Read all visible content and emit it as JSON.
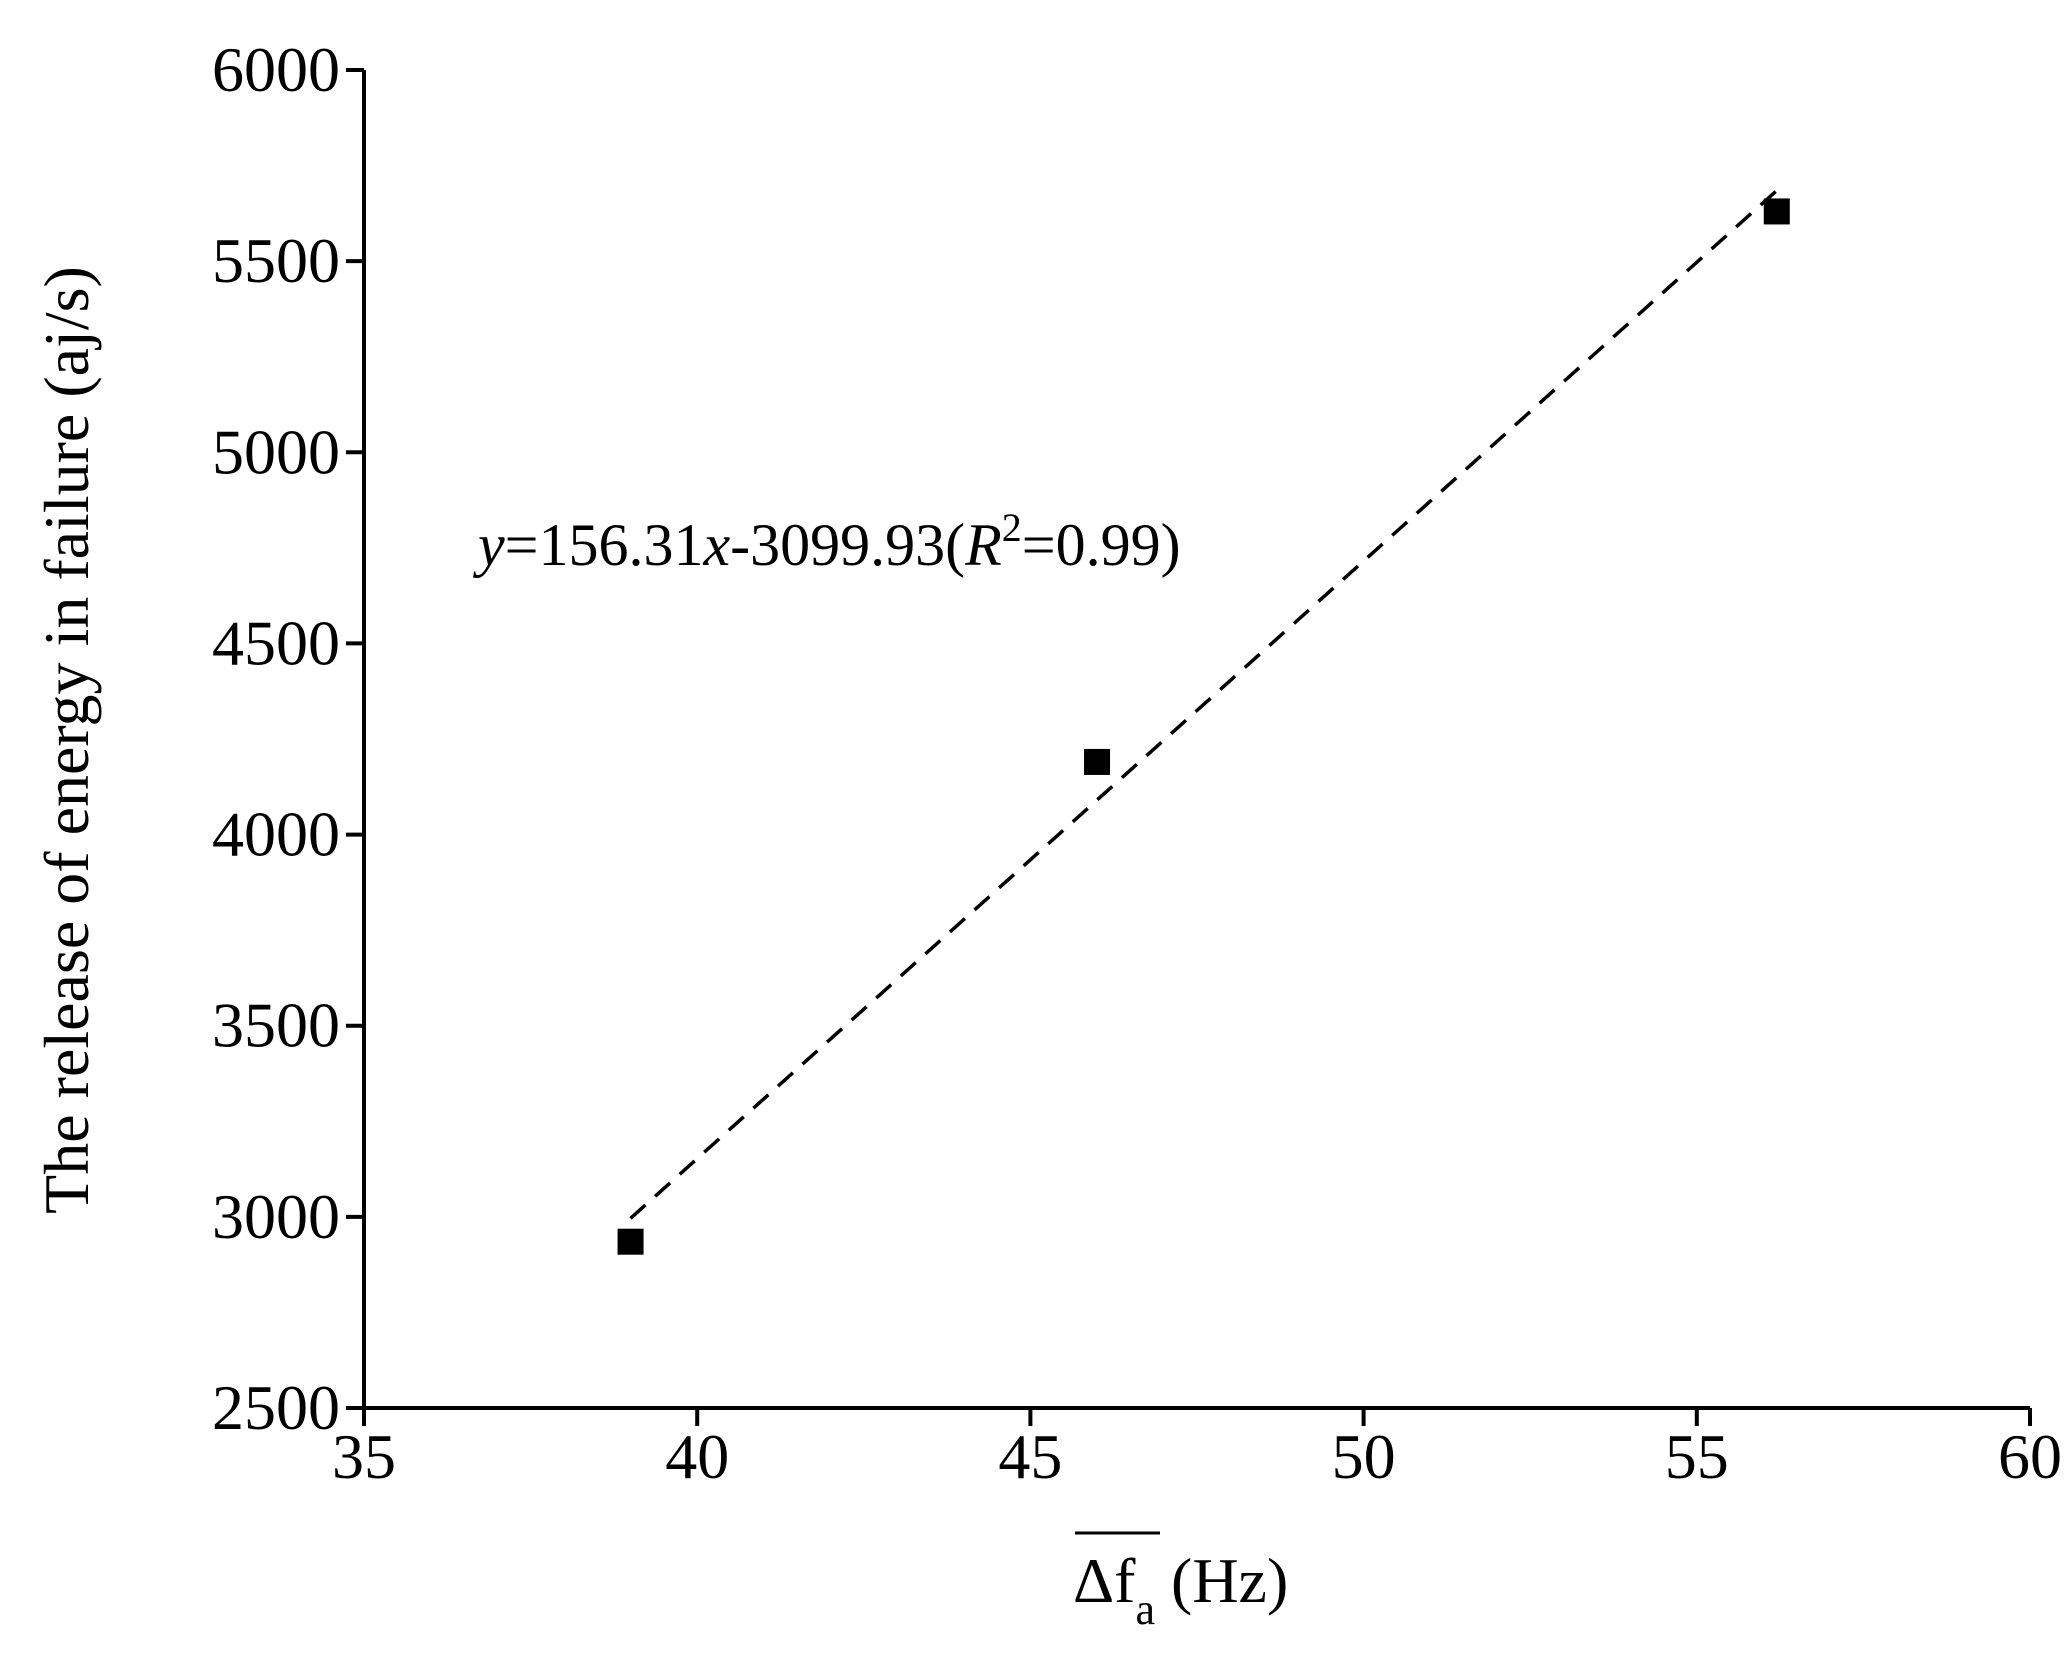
{
  "chart_data": {
    "type": "scatter",
    "title": "",
    "xlabel": {
      "base": "Δf",
      "subscript": "a",
      "overline": true,
      "unit": " (Hz)"
    },
    "ylabel": "The release of energy in failure (aj/s)",
    "xlim": [
      35,
      60
    ],
    "ylim": [
      2500,
      6000
    ],
    "xticks": [
      "35",
      "40",
      "45",
      "50",
      "55",
      "60"
    ],
    "yticks": [
      "2500",
      "3000",
      "3500",
      "4000",
      "4500",
      "5000",
      "5500",
      "6000"
    ],
    "grid": false,
    "legend": "none",
    "series": [
      {
        "marker": "square",
        "color": "#000000",
        "points": [
          {
            "x": 39.0,
            "y": 2935
          },
          {
            "x": 46.0,
            "y": 4190
          },
          {
            "x": 56.2,
            "y": 5630
          }
        ]
      }
    ],
    "fit_line": {
      "style": "dashed",
      "slope": 156.31,
      "intercept": -3099.93,
      "x_range": [
        39.0,
        56.2
      ]
    },
    "annotation": {
      "y_var": "y",
      "eq1": "=156.31",
      "x_var": "x",
      "eq2": "-3099.93(",
      "r_var": "R",
      "r_sup": "2",
      "eq3": "=0.99)"
    }
  }
}
